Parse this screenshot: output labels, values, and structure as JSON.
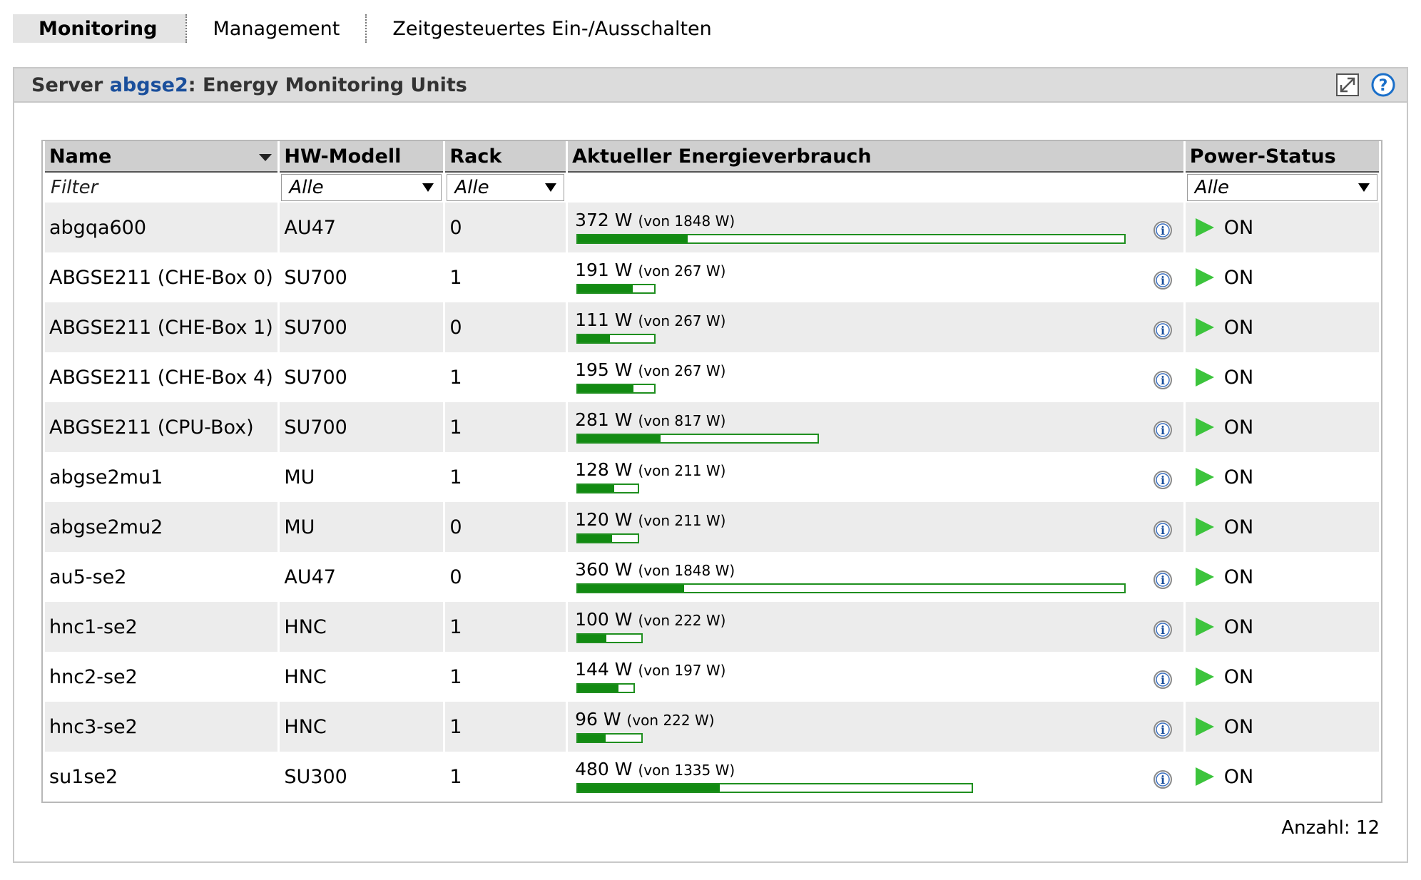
{
  "tabs": [
    {
      "label": "Monitoring",
      "active": true
    },
    {
      "label": "Management",
      "active": false
    },
    {
      "label": "Zeitgesteuertes Ein-/Ausschalten",
      "active": false
    }
  ],
  "panel": {
    "title_prefix": "Server ",
    "server": "abgse2",
    "title_suffix": ": Energy Monitoring Units",
    "icons": [
      "maximize-icon",
      "help-icon"
    ]
  },
  "table": {
    "headers": {
      "name": "Name",
      "model": "HW-Modell",
      "rack": "Rack",
      "energy": "Aktueller Energieverbrauch",
      "power": "Power-Status"
    },
    "filters": {
      "name_placeholder": "Filter",
      "model": "Alle",
      "rack": "Alle",
      "power": "Alle"
    },
    "rows": [
      {
        "name": "abgqa600",
        "model": "AU47",
        "rack": "0",
        "watts": "372 W",
        "max": "(von 1848 W)",
        "value": 372,
        "capacity": 1848,
        "status": "ON"
      },
      {
        "name": "ABGSE211 (CHE-Box 0)",
        "model": "SU700",
        "rack": "1",
        "watts": "191 W",
        "max": "(von 267 W)",
        "value": 191,
        "capacity": 267,
        "status": "ON"
      },
      {
        "name": "ABGSE211 (CHE-Box 1)",
        "model": "SU700",
        "rack": "0",
        "watts": "111 W",
        "max": "(von 267 W)",
        "value": 111,
        "capacity": 267,
        "status": "ON"
      },
      {
        "name": "ABGSE211 (CHE-Box 4)",
        "model": "SU700",
        "rack": "1",
        "watts": "195 W",
        "max": "(von 267 W)",
        "value": 195,
        "capacity": 267,
        "status": "ON"
      },
      {
        "name": "ABGSE211 (CPU-Box)",
        "model": "SU700",
        "rack": "1",
        "watts": "281 W",
        "max": "(von 817 W)",
        "value": 281,
        "capacity": 817,
        "status": "ON"
      },
      {
        "name": "abgse2mu1",
        "model": "MU",
        "rack": "1",
        "watts": "128 W",
        "max": "(von 211 W)",
        "value": 128,
        "capacity": 211,
        "status": "ON"
      },
      {
        "name": "abgse2mu2",
        "model": "MU",
        "rack": "0",
        "watts": "120 W",
        "max": "(von 211 W)",
        "value": 120,
        "capacity": 211,
        "status": "ON"
      },
      {
        "name": "au5-se2",
        "model": "AU47",
        "rack": "0",
        "watts": "360 W",
        "max": "(von 1848 W)",
        "value": 360,
        "capacity": 1848,
        "status": "ON"
      },
      {
        "name": "hnc1-se2",
        "model": "HNC",
        "rack": "1",
        "watts": "100 W",
        "max": "(von 222 W)",
        "value": 100,
        "capacity": 222,
        "status": "ON"
      },
      {
        "name": "hnc2-se2",
        "model": "HNC",
        "rack": "1",
        "watts": "144 W",
        "max": "(von 197 W)",
        "value": 144,
        "capacity": 197,
        "status": "ON"
      },
      {
        "name": "hnc3-se2",
        "model": "HNC",
        "rack": "1",
        "watts": "96 W",
        "max": "(von 222 W)",
        "value": 96,
        "capacity": 222,
        "status": "ON"
      },
      {
        "name": "su1se2",
        "model": "SU300",
        "rack": "1",
        "watts": "480 W",
        "max": "(von 1335 W)",
        "value": 480,
        "capacity": 1335,
        "status": "ON"
      }
    ]
  },
  "footer": {
    "count_label": "Anzahl: 12"
  },
  "colors": {
    "bar_fill": "#128a12",
    "bar_border": "#1f8f1f",
    "on_arrow": "#3cc43c",
    "server_link": "#1a4f9c"
  }
}
